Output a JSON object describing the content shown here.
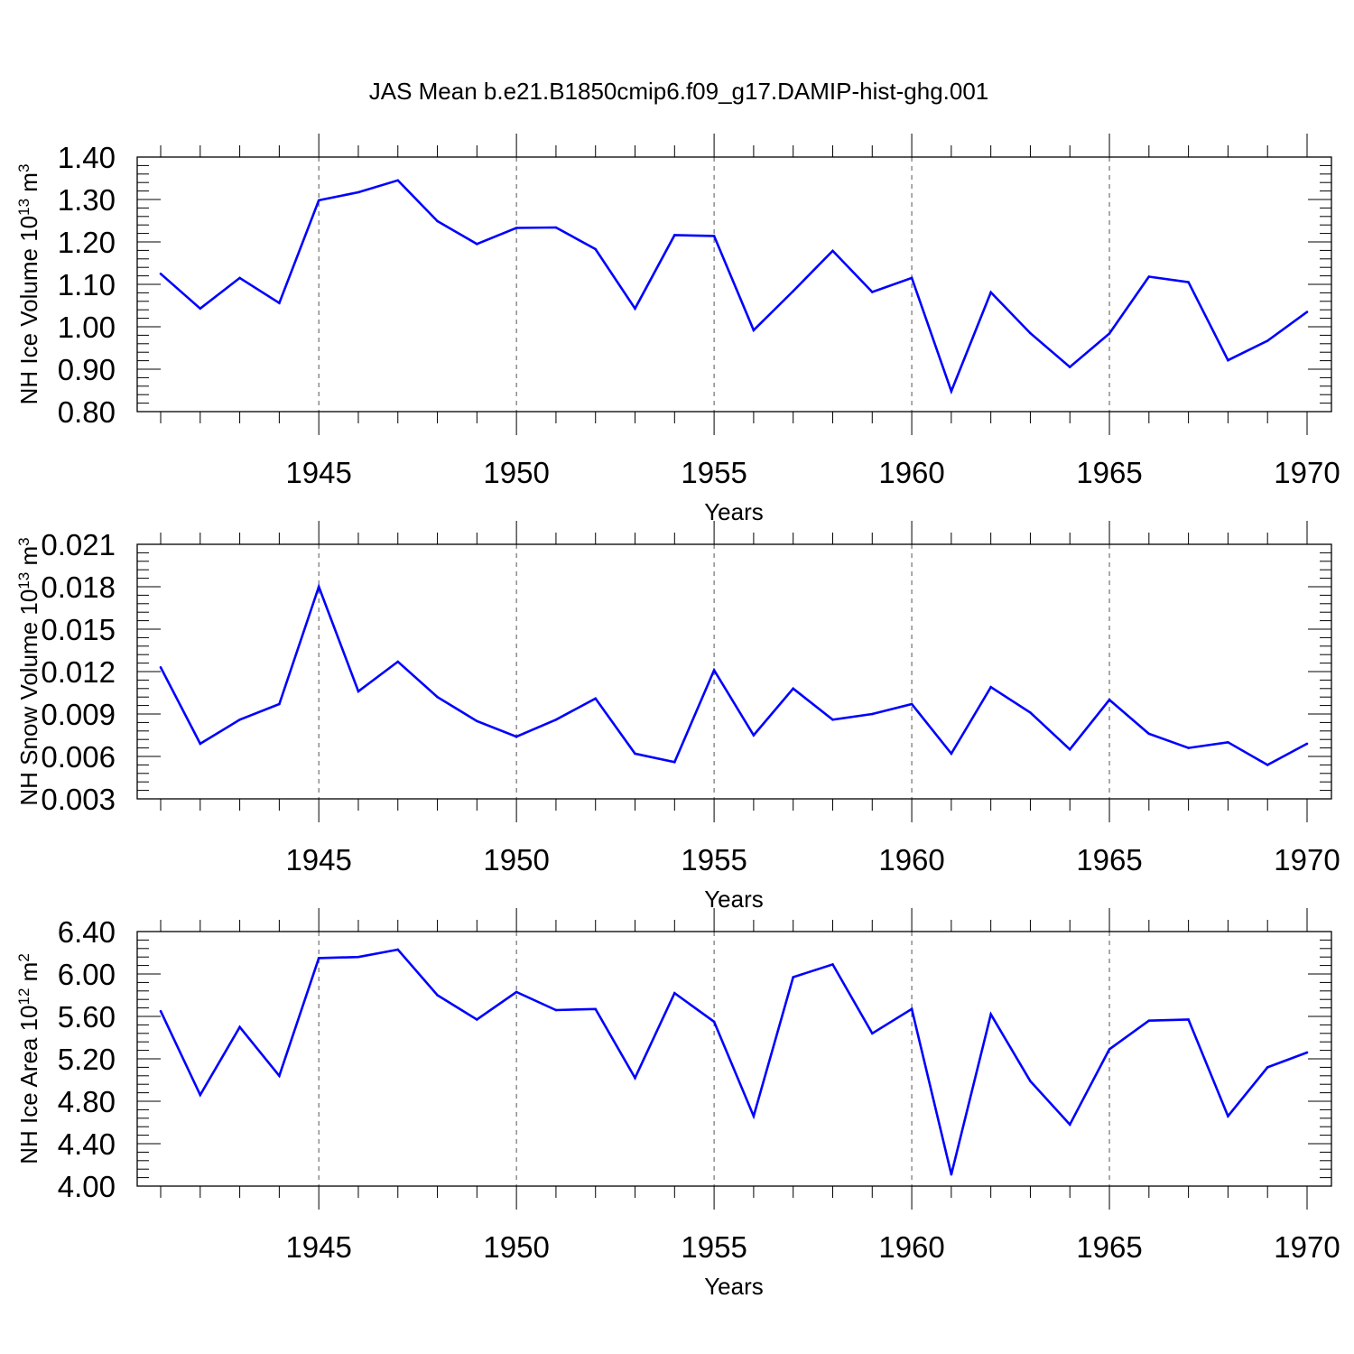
{
  "title": "JAS Mean b.e21.B1850cmip6.f09_g17.DAMIP-hist-ghg.001",
  "colors": {
    "line": "#0000ff",
    "axis": "#000000",
    "grid": "#555555"
  },
  "chart_data": [
    {
      "type": "line",
      "ylabel": "NH Ice Volume",
      "ylabel_unit_base": "10",
      "ylabel_unit_exp": "13",
      "ylabel_unit_tail": " m",
      "ylabel_unit_tail_exp": "3",
      "xlabel": "Years",
      "xlim": [
        1941,
        1970
      ],
      "ylim": [
        0.8,
        1.4
      ],
      "yticks": [
        0.8,
        0.9,
        1.0,
        1.1,
        1.2,
        1.3,
        1.4
      ],
      "ytick_labels": [
        "0.80",
        "0.90",
        "1.00",
        "1.10",
        "1.20",
        "1.30",
        "1.40"
      ],
      "xticks": [
        1945,
        1950,
        1955,
        1960,
        1965,
        1970
      ],
      "xtick_labels": [
        "1945",
        "1950",
        "1955",
        "1960",
        "1965",
        "1970"
      ],
      "grid": "vertical dashed at major x ticks",
      "x": [
        1941,
        1942,
        1943,
        1944,
        1945,
        1946,
        1947,
        1948,
        1949,
        1950,
        1951,
        1952,
        1953,
        1954,
        1955,
        1956,
        1957,
        1958,
        1959,
        1960,
        1961,
        1962,
        1963,
        1964,
        1965,
        1966,
        1967,
        1968,
        1969,
        1970
      ],
      "y": [
        1.125,
        1.043,
        1.115,
        1.056,
        1.298,
        1.317,
        1.345,
        1.249,
        1.195,
        1.233,
        1.234,
        1.183,
        1.043,
        1.216,
        1.214,
        0.992,
        1.084,
        1.179,
        1.082,
        1.115,
        0.848,
        1.081,
        0.985,
        0.905,
        0.984,
        1.118,
        1.105,
        0.921,
        0.967,
        1.035
      ]
    },
    {
      "type": "line",
      "ylabel": "NH Snow Volume",
      "ylabel_unit_base": "10",
      "ylabel_unit_exp": "13",
      "ylabel_unit_tail": " m",
      "ylabel_unit_tail_exp": "3",
      "xlabel": "Years",
      "xlim": [
        1941,
        1970
      ],
      "ylim": [
        0.003,
        0.021
      ],
      "yticks": [
        0.003,
        0.006,
        0.009,
        0.012,
        0.015,
        0.018,
        0.021
      ],
      "ytick_labels": [
        "0.003",
        "0.006",
        "0.009",
        "0.012",
        "0.015",
        "0.018",
        "0.021"
      ],
      "xticks": [
        1945,
        1950,
        1955,
        1960,
        1965,
        1970
      ],
      "xtick_labels": [
        "1945",
        "1950",
        "1955",
        "1960",
        "1965",
        "1970"
      ],
      "grid": "vertical dashed at major x ticks",
      "x": [
        1941,
        1942,
        1943,
        1944,
        1945,
        1946,
        1947,
        1948,
        1949,
        1950,
        1951,
        1952,
        1953,
        1954,
        1955,
        1956,
        1957,
        1958,
        1959,
        1960,
        1961,
        1962,
        1963,
        1964,
        1965,
        1966,
        1967,
        1968,
        1969,
        1970
      ],
      "y": [
        0.0123,
        0.0069,
        0.0086,
        0.0097,
        0.018,
        0.0106,
        0.0127,
        0.0102,
        0.0085,
        0.0074,
        0.0086,
        0.0101,
        0.0062,
        0.0056,
        0.0121,
        0.0075,
        0.0108,
        0.0086,
        0.009,
        0.0097,
        0.0062,
        0.0109,
        0.0091,
        0.0065,
        0.01,
        0.0076,
        0.0066,
        0.007,
        0.0054,
        0.0069
      ]
    },
    {
      "type": "line",
      "ylabel": "NH Ice Area",
      "ylabel_unit_base": "10",
      "ylabel_unit_exp": "12",
      "ylabel_unit_tail": " m",
      "ylabel_unit_tail_exp": "2",
      "xlabel": "Years",
      "xlim": [
        1941,
        1970
      ],
      "ylim": [
        4.0,
        6.4
      ],
      "yticks": [
        4.0,
        4.4,
        4.8,
        5.2,
        5.6,
        6.0,
        6.4
      ],
      "ytick_labels": [
        "4.00",
        "4.40",
        "4.80",
        "5.20",
        "5.60",
        "6.00",
        "6.40"
      ],
      "xticks": [
        1945,
        1950,
        1955,
        1960,
        1965,
        1970
      ],
      "xtick_labels": [
        "1945",
        "1950",
        "1955",
        "1960",
        "1965",
        "1970"
      ],
      "grid": "vertical dashed at major x ticks",
      "x": [
        1941,
        1942,
        1943,
        1944,
        1945,
        1946,
        1947,
        1948,
        1949,
        1950,
        1951,
        1952,
        1953,
        1954,
        1955,
        1956,
        1957,
        1958,
        1959,
        1960,
        1961,
        1962,
        1963,
        1964,
        1965,
        1966,
        1967,
        1968,
        1969,
        1970
      ],
      "y": [
        5.65,
        4.86,
        5.5,
        5.04,
        6.15,
        6.16,
        6.23,
        5.8,
        5.57,
        5.83,
        5.66,
        5.67,
        5.02,
        5.82,
        5.55,
        4.66,
        5.97,
        6.09,
        5.44,
        5.67,
        4.11,
        5.62,
        4.99,
        4.58,
        5.29,
        5.56,
        5.57,
        4.66,
        5.12,
        5.26
      ]
    }
  ]
}
